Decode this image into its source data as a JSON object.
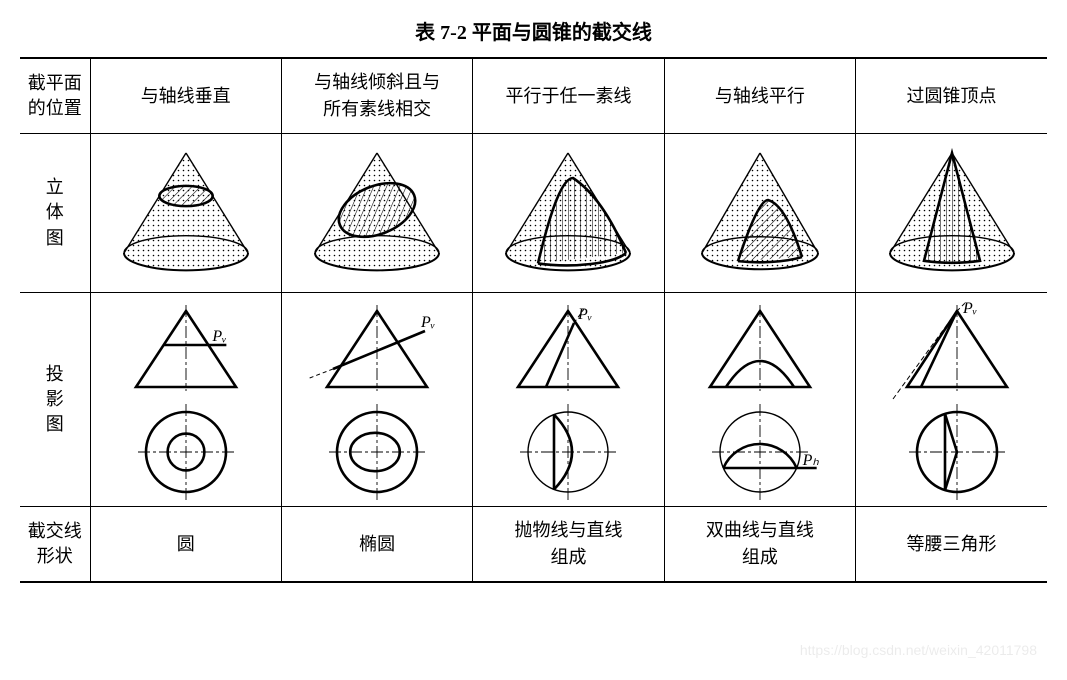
{
  "title": "表 7-2    平面与圆锥的截交线",
  "row_headers": {
    "pos": "截平面\n的位置",
    "solid": "立\n体\n图",
    "proj": "投\n影\n图",
    "shape": "截交线\n形状"
  },
  "columns": [
    {
      "pos_label": "与轴线垂直",
      "shape_label": "圆"
    },
    {
      "pos_label": "与轴线倾斜且与\n所有素线相交",
      "shape_label": "椭圆"
    },
    {
      "pos_label": "平行于任一素线",
      "shape_label": "抛物线与直线\n组成"
    },
    {
      "pos_label": "与轴线平行",
      "shape_label": "双曲线与直线\n组成"
    },
    {
      "pos_label": "过圆锥顶点",
      "shape_label": "等腰三角形"
    }
  ],
  "labels": {
    "Pv": "Pᵥ",
    "Ph": "Pₕ"
  },
  "style": {
    "stroke": "#000000",
    "thin": 1.4,
    "medium": 2.0,
    "thick": 2.6,
    "hatch_spacing": 6,
    "dot_spacing": 5,
    "tri_row_h": 110,
    "proj_row_h": 205,
    "solid_row_h": 155,
    "italic_font": "italic 16px 'Times New Roman', serif"
  },
  "watermark": "https://blog.csdn.net/weixin_42011798"
}
